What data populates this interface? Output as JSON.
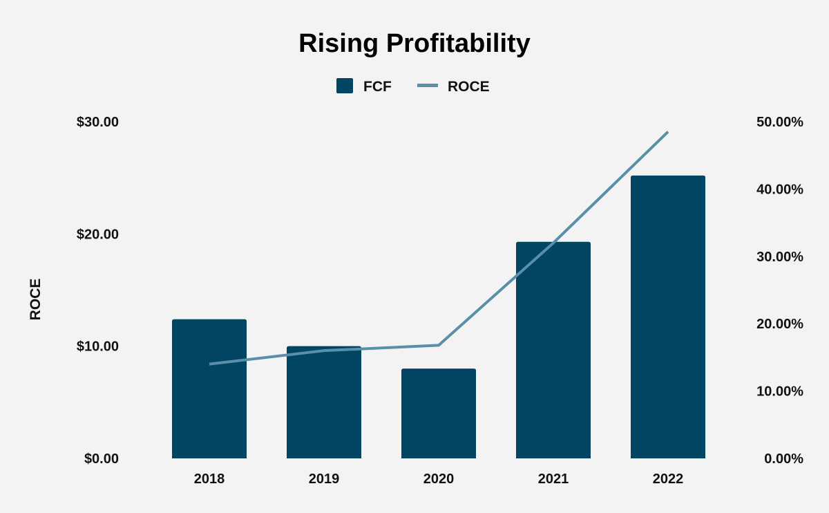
{
  "chart_data": {
    "type": "bar",
    "title": "Rising Profitability",
    "categories": [
      "2018",
      "2019",
      "2020",
      "2021",
      "2022"
    ],
    "series": [
      {
        "name": "FCF",
        "type": "bar",
        "axis": "left",
        "color": "#004562",
        "values": [
          12.4,
          10.0,
          8.0,
          19.3,
          25.2
        ]
      },
      {
        "name": "ROCE",
        "type": "line",
        "axis": "right",
        "color": "#5a8faa",
        "values": [
          14.0,
          16.0,
          16.8,
          32.0,
          48.5
        ]
      }
    ],
    "y_left": {
      "label": "ROCE",
      "ylim": [
        0,
        30
      ],
      "ticks": [
        0,
        10,
        20,
        30
      ],
      "tick_labels": [
        "$0.00",
        "$10.00",
        "$20.00",
        "$30.00"
      ]
    },
    "y_right": {
      "label": "",
      "ylim": [
        0,
        50
      ],
      "ticks": [
        0,
        10,
        20,
        30,
        40,
        50
      ],
      "tick_labels": [
        "0.00%",
        "10.00%",
        "20.00%",
        "30.00%",
        "40.00%",
        "50.00%"
      ]
    },
    "legend": {
      "position": "top-center",
      "entries": [
        "FCF",
        "ROCE"
      ]
    },
    "grid": false,
    "background": "#f3f3f3"
  }
}
